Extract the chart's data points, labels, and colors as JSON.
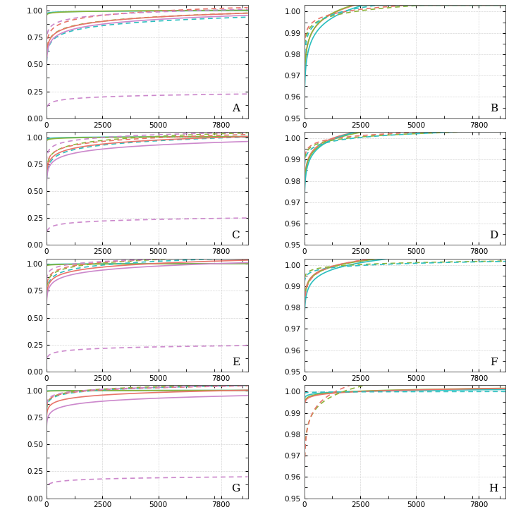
{
  "colors": {
    "red": "#E8746A",
    "green": "#8DB33A",
    "teal": "#2BBFBF",
    "purple": "#CC88CC"
  },
  "x_ticks": [
    0,
    2500,
    5000,
    7800
  ],
  "panels": [
    {
      "label": "A",
      "ylim": [
        0.0,
        1.05
      ],
      "yticks": [
        0.0,
        0.25,
        0.5,
        0.75,
        1.0
      ],
      "curves": [
        {
          "color": "teal",
          "dashed": false,
          "a": 0.96,
          "b": 0.0043
        },
        {
          "color": "teal",
          "dashed": true,
          "a": 0.375,
          "b": 0.062
        },
        {
          "color": "green",
          "dashed": false,
          "a": 0.94,
          "b": 0.007
        },
        {
          "color": "green",
          "dashed": true,
          "a": 0.44,
          "b": 0.059
        },
        {
          "color": "red",
          "dashed": false,
          "a": 0.43,
          "b": 0.06
        },
        {
          "color": "red",
          "dashed": true,
          "a": 0.51,
          "b": 0.057
        },
        {
          "color": "purple",
          "dashed": false,
          "a": 0.375,
          "b": 0.0638
        },
        {
          "color": "purple",
          "dashed": true,
          "a": 0.63,
          "b": 0.042
        },
        {
          "color": "purple",
          "dashed": true,
          "a": 0.03,
          "b": 0.0215
        }
      ]
    },
    {
      "label": "B",
      "ylim": [
        0.95,
        1.003
      ],
      "yticks": [
        0.95,
        0.96,
        0.97,
        0.98,
        0.99,
        1.0
      ],
      "curves": [
        {
          "color": "red",
          "dashed": false,
          "a": 0.9505,
          "b": 0.0068
        },
        {
          "color": "green",
          "dashed": false,
          "a": 0.95,
          "b": 0.0069
        },
        {
          "color": "teal",
          "dashed": false,
          "a": 0.94,
          "b": 0.008
        },
        {
          "color": "red",
          "dashed": true,
          "a": 0.976,
          "b": 0.0032
        },
        {
          "color": "green",
          "dashed": true,
          "a": 0.973,
          "b": 0.0035
        },
        {
          "color": "teal",
          "dashed": true,
          "a": 0.965,
          "b": 0.0047
        }
      ]
    },
    {
      "label": "C",
      "ylim": [
        0.0,
        1.05
      ],
      "yticks": [
        0.0,
        0.25,
        0.5,
        0.75,
        1.0
      ],
      "curves": [
        {
          "color": "teal",
          "dashed": false,
          "a": 0.97,
          "b": 0.004
        },
        {
          "color": "teal",
          "dashed": true,
          "a": 0.465,
          "b": 0.059
        },
        {
          "color": "green",
          "dashed": false,
          "a": 0.952,
          "b": 0.006
        },
        {
          "color": "green",
          "dashed": true,
          "a": 0.54,
          "b": 0.055
        },
        {
          "color": "red",
          "dashed": false,
          "a": 0.51,
          "b": 0.0545
        },
        {
          "color": "red",
          "dashed": true,
          "a": 0.57,
          "b": 0.05
        },
        {
          "color": "purple",
          "dashed": false,
          "a": 0.46,
          "b": 0.055
        },
        {
          "color": "purple",
          "dashed": true,
          "a": 0.7,
          "b": 0.038
        },
        {
          "color": "purple",
          "dashed": true,
          "a": 0.05,
          "b": 0.022
        }
      ]
    },
    {
      "label": "D",
      "ylim": [
        0.95,
        1.003
      ],
      "yticks": [
        0.95,
        0.96,
        0.97,
        0.98,
        0.99,
        1.0
      ],
      "curves": [
        {
          "color": "red",
          "dashed": false,
          "a": 0.965,
          "b": 0.0049
        },
        {
          "color": "green",
          "dashed": false,
          "a": 0.964,
          "b": 0.00495
        },
        {
          "color": "teal",
          "dashed": false,
          "a": 0.958,
          "b": 0.0058
        },
        {
          "color": "red",
          "dashed": true,
          "a": 0.984,
          "b": 0.0022
        },
        {
          "color": "green",
          "dashed": true,
          "a": 0.983,
          "b": 0.00225
        },
        {
          "color": "teal",
          "dashed": true,
          "a": 0.98,
          "b": 0.0026
        }
      ]
    },
    {
      "label": "E",
      "ylim": [
        0.0,
        1.05
      ],
      "yticks": [
        0.0,
        0.25,
        0.5,
        0.75,
        1.0
      ],
      "curves": [
        {
          "color": "teal",
          "dashed": false,
          "a": 0.985,
          "b": 0.002
        },
        {
          "color": "green",
          "dashed": false,
          "a": 0.975,
          "b": 0.003
        },
        {
          "color": "teal",
          "dashed": true,
          "a": 0.59,
          "b": 0.051
        },
        {
          "color": "green",
          "dashed": true,
          "a": 0.64,
          "b": 0.047
        },
        {
          "color": "red",
          "dashed": false,
          "a": 0.575,
          "b": 0.0505
        },
        {
          "color": "red",
          "dashed": true,
          "a": 0.67,
          "b": 0.044
        },
        {
          "color": "purple",
          "dashed": false,
          "a": 0.52,
          "b": 0.054
        },
        {
          "color": "purple",
          "dashed": true,
          "a": 0.78,
          "b": 0.031
        },
        {
          "color": "purple",
          "dashed": true,
          "a": 0.055,
          "b": 0.0205
        }
      ]
    },
    {
      "label": "F",
      "ylim": [
        0.95,
        1.003
      ],
      "yticks": [
        0.95,
        0.96,
        0.97,
        0.98,
        0.99,
        1.0
      ],
      "curves": [
        {
          "color": "red",
          "dashed": false,
          "a": 0.973,
          "b": 0.0037
        },
        {
          "color": "green",
          "dashed": false,
          "a": 0.972,
          "b": 0.0038
        },
        {
          "color": "teal",
          "dashed": false,
          "a": 0.965,
          "b": 0.0046
        },
        {
          "color": "green",
          "dashed": true,
          "a": 0.99,
          "b": 0.0013
        },
        {
          "color": "teal",
          "dashed": true,
          "a": 0.988,
          "b": 0.0015
        },
        {
          "color": "red",
          "dashed": true,
          "a": 0.97,
          "b": 0.0041
        }
      ]
    },
    {
      "label": "G",
      "ylim": [
        0.0,
        1.05
      ],
      "yticks": [
        0.0,
        0.25,
        0.5,
        0.75,
        1.0
      ],
      "curves": [
        {
          "color": "teal",
          "dashed": false,
          "a": 0.993,
          "b": 0.00095
        },
        {
          "color": "green",
          "dashed": false,
          "a": 0.988,
          "b": 0.0015
        },
        {
          "color": "teal",
          "dashed": true,
          "a": 0.745,
          "b": 0.0332
        },
        {
          "color": "green",
          "dashed": true,
          "a": 0.755,
          "b": 0.033
        },
        {
          "color": "red",
          "dashed": false,
          "a": 0.68,
          "b": 0.0355
        },
        {
          "color": "red",
          "dashed": true,
          "a": 0.775,
          "b": 0.0295
        },
        {
          "color": "purple",
          "dashed": false,
          "a": 0.58,
          "b": 0.041
        },
        {
          "color": "purple",
          "dashed": true,
          "a": 0.8,
          "b": 0.027
        },
        {
          "color": "purple",
          "dashed": true,
          "a": 0.058,
          "b": 0.0155
        }
      ]
    },
    {
      "label": "H",
      "ylim": [
        0.95,
        1.003
      ],
      "yticks": [
        0.95,
        0.96,
        0.97,
        0.98,
        0.99,
        1.0
      ],
      "curves": [
        {
          "color": "teal",
          "dashed": false,
          "a": 0.995,
          "b": 0.00065
        },
        {
          "color": "green",
          "dashed": false,
          "a": 0.992,
          "b": 0.00105
        },
        {
          "color": "red",
          "dashed": false,
          "a": 0.991,
          "b": 0.00115
        },
        {
          "color": "teal",
          "dashed": true,
          "a": 0.999,
          "b": 0.00011
        },
        {
          "color": "green",
          "dashed": true,
          "a": 0.95,
          "b": 0.0067
        },
        {
          "color": "red",
          "dashed": true,
          "a": 0.945,
          "b": 0.0076
        }
      ]
    }
  ]
}
